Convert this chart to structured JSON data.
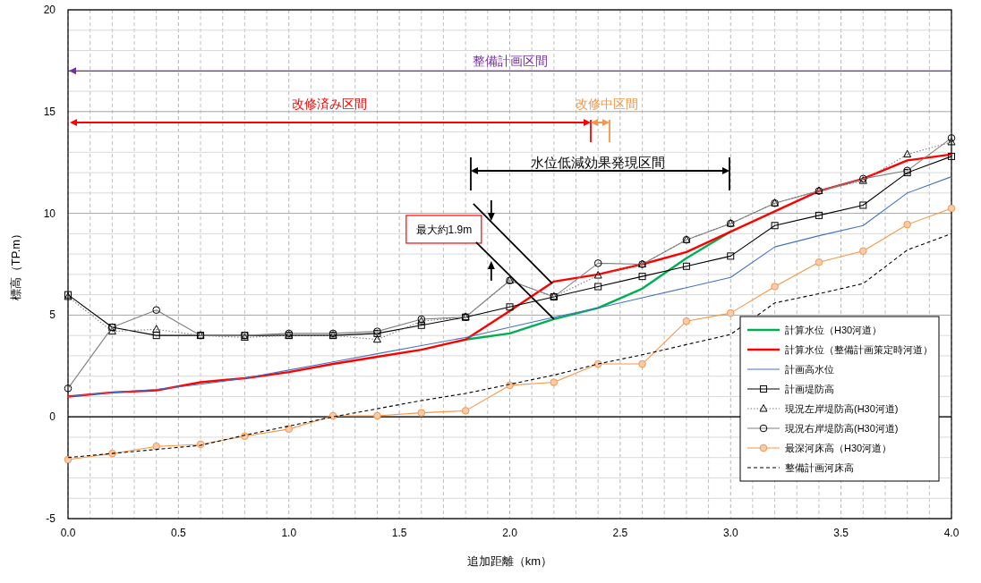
{
  "chart_data": {
    "type": "line",
    "xlabel": "追加距離（km）",
    "ylabel": "標高（TP.m）",
    "x": [
      0,
      0.2,
      0.4,
      0.6,
      0.8,
      1.0,
      1.2,
      1.4,
      1.6,
      1.8,
      2.0,
      2.2,
      2.4,
      2.6,
      2.8,
      3.0,
      3.2,
      3.4,
      3.6,
      3.8,
      4.0
    ],
    "xlim": [
      0,
      4
    ],
    "xticks": [
      {
        "value": 0,
        "label": "0.0"
      },
      {
        "value": 0.5,
        "label": "0.5"
      },
      {
        "value": 1,
        "label": "1.0"
      },
      {
        "value": 1.5,
        "label": "1.5"
      },
      {
        "value": 2,
        "label": "2.0"
      },
      {
        "value": 2.5,
        "label": "2.5"
      },
      {
        "value": 3,
        "label": "3.0"
      },
      {
        "value": 3.5,
        "label": "3.5"
      },
      {
        "value": 4,
        "label": "4.0"
      }
    ],
    "ylim": [
      -5,
      20
    ],
    "yticks": [
      -5,
      0,
      5,
      10,
      15,
      20
    ],
    "grid": true,
    "legend": "bottom right",
    "series": [
      {
        "name": "計算水位（H30河道）",
        "color": "#00b050",
        "marker": "none",
        "line_style": "solid",
        "values": [
          null,
          null,
          null,
          null,
          null,
          null,
          null,
          null,
          null,
          3.8,
          4.1,
          4.8,
          5.35,
          6.3,
          7.8,
          9.1,
          null,
          null,
          null,
          null,
          null
        ]
      },
      {
        "name": "計算水位（整備計画策定時河道）",
        "color": "#ff0000",
        "marker": "none",
        "line_style": "solid",
        "values": [
          1.0,
          1.2,
          1.3,
          1.7,
          1.9,
          2.2,
          2.6,
          2.95,
          3.3,
          3.8,
          5.2,
          6.65,
          7.0,
          7.5,
          8.1,
          9.1,
          10.1,
          11.1,
          11.7,
          12.6,
          12.9
        ]
      },
      {
        "name": "計画高水位",
        "color": "#4472c4",
        "marker": "none",
        "line_style": "solid",
        "values": [
          1.0,
          1.2,
          1.35,
          1.6,
          1.9,
          2.3,
          2.7,
          3.1,
          3.5,
          3.9,
          4.4,
          4.9,
          5.35,
          5.85,
          6.35,
          6.85,
          8.35,
          8.9,
          9.4,
          11.0,
          11.8
        ]
      },
      {
        "name": "計画堤防高",
        "color": "#000000",
        "marker": "square",
        "line_style": "solid",
        "values": [
          6.0,
          4.4,
          4.0,
          4.0,
          4.0,
          4.0,
          4.0,
          4.1,
          4.5,
          4.9,
          5.4,
          5.9,
          6.4,
          6.9,
          7.4,
          7.9,
          9.4,
          9.9,
          10.4,
          12.0,
          12.8
        ]
      },
      {
        "name": "現況左岸堤防高(H30河道)",
        "color": "#808080",
        "marker": "triangle",
        "line_style": "dotted",
        "values": [
          5.9,
          4.2,
          4.3,
          4.0,
          3.9,
          4.0,
          4.0,
          3.8,
          4.7,
          4.9,
          6.7,
          5.9,
          6.95,
          7.5,
          8.7,
          9.5,
          10.5,
          11.1,
          11.6,
          12.9,
          13.5
        ]
      },
      {
        "name": "現況右岸堤防高(H30河道)",
        "color": "#808080",
        "marker": "circle",
        "line_style": "solid",
        "values": [
          1.4,
          4.4,
          5.25,
          4.0,
          4.0,
          4.1,
          4.1,
          4.2,
          4.8,
          4.9,
          6.7,
          5.9,
          7.55,
          7.5,
          8.7,
          9.5,
          10.5,
          11.1,
          11.7,
          12.1,
          13.7
        ]
      },
      {
        "name": "最深河床高（H30河道）",
        "color": "#f79646",
        "marker": "circle",
        "line_style": "solid",
        "values": [
          -2.1,
          -1.8,
          -1.45,
          -1.35,
          -0.95,
          -0.6,
          0.05,
          0.05,
          0.2,
          0.3,
          1.55,
          1.7,
          2.6,
          2.6,
          4.7,
          5.1,
          6.4,
          7.6,
          8.15,
          9.45,
          10.25
        ]
      },
      {
        "name": "整備計画河床高",
        "color": "#000000",
        "marker": "none",
        "line_style": "dashed",
        "values": [
          -2.0,
          -1.8,
          -1.6,
          -1.4,
          -0.9,
          -0.45,
          0.0,
          0.4,
          0.8,
          1.15,
          1.6,
          2.05,
          2.6,
          3.05,
          3.55,
          4.05,
          5.6,
          6.05,
          6.55,
          8.2,
          9.0
        ]
      }
    ],
    "ref_lines": [
      {
        "axis": "y",
        "value": 0,
        "color": "#000000"
      },
      {
        "axis": "y",
        "value": 17,
        "label": "整備計画区間",
        "color": "#7030a0"
      }
    ],
    "annotations": [
      "改修済み区間",
      "改修中区間",
      "水位低減効果発現区間",
      {
        "text": "最大約1.9m",
        "x": 2.2,
        "y": 4.8
      }
    ]
  }
}
